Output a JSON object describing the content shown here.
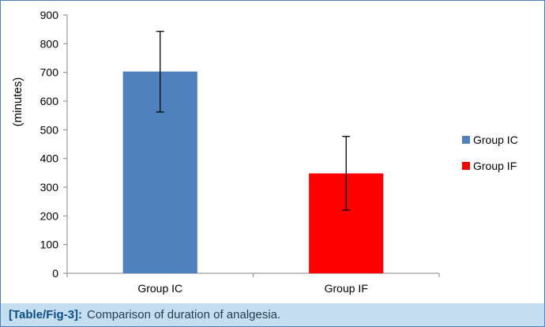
{
  "caption": {
    "label": "[Table/Fig-3]:",
    "text": "Comparison of duration of analgesia."
  },
  "chart_data": {
    "type": "bar",
    "categories": [
      "Group IC",
      "Group IF"
    ],
    "values": [
      703,
      348
    ],
    "error_upper": [
      843,
      477
    ],
    "error_lower": [
      562,
      220
    ],
    "colors": [
      "#4f81bd",
      "#ff0000"
    ],
    "title": "",
    "xlabel": "",
    "ylabel": "(minutes)",
    "ylim": [
      0,
      900
    ],
    "yticks": [
      0,
      100,
      200,
      300,
      400,
      500,
      600,
      700,
      800,
      900
    ],
    "grid": false,
    "legend": {
      "placement": "right",
      "entries": [
        {
          "label": "Group IC",
          "color": "#4f81bd"
        },
        {
          "label": "Group IF",
          "color": "#ff0000"
        }
      ]
    }
  }
}
